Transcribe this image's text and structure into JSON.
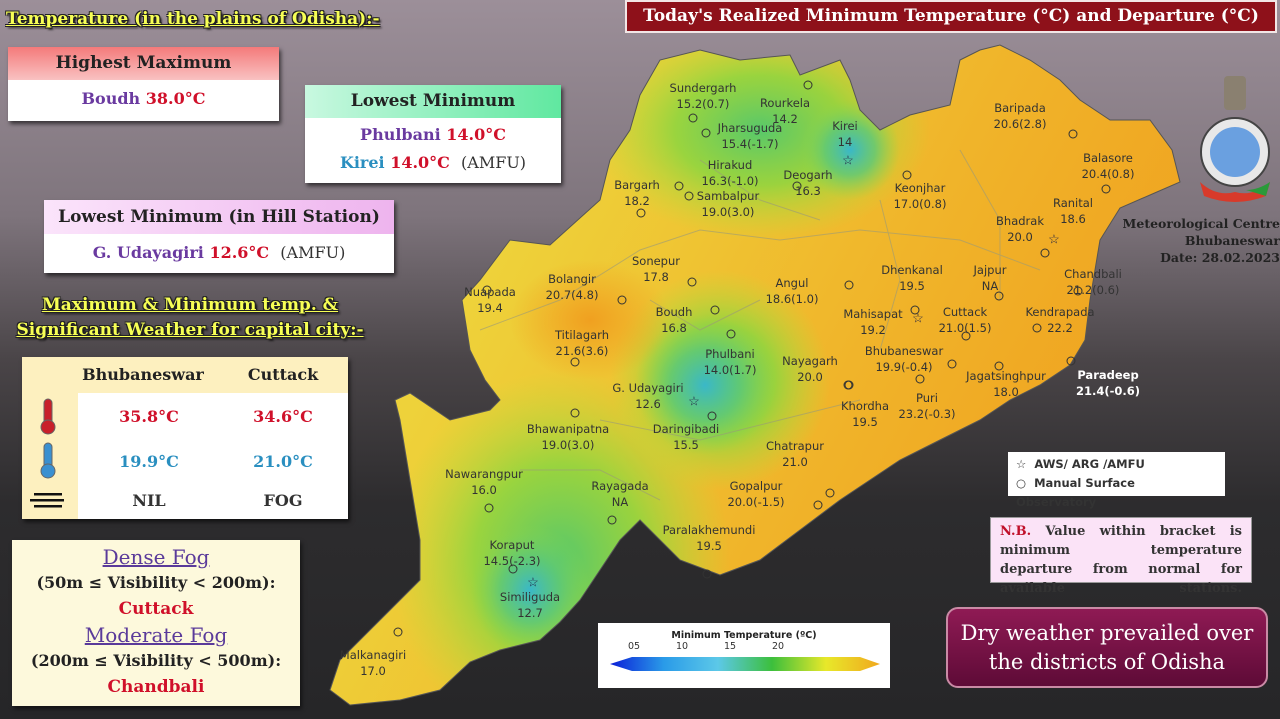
{
  "title": "Today's Realized Minimum Temperature (°C) and Departure (°C)",
  "plains_heading": "Temperature (in the plains of Odisha):-",
  "highest_maximum": {
    "header": "Highest Maximum",
    "station": "Boudh",
    "value": "38.0°C"
  },
  "lowest_minimum": {
    "header": "Lowest Minimum",
    "rows": [
      {
        "station": "Phulbani",
        "value": "14.0°C",
        "note": ""
      },
      {
        "station": "Kirei",
        "value": "14.0°C",
        "note": "(AMFU)"
      }
    ]
  },
  "hill_station": {
    "header": "Lowest Minimum (in Hill Station)",
    "station": "G. Udayagiri",
    "value": "12.6°C",
    "note": "(AMFU)"
  },
  "capital_heading": {
    "line1": "Maximum & Minimum temp. &",
    "line2": "Significant Weather for capital city:-"
  },
  "capital_table": {
    "columns": [
      "Bhubaneswar",
      "Cuttack"
    ],
    "max": [
      "35.8°C",
      "34.6°C"
    ],
    "min": [
      "19.9°C",
      "21.0°C"
    ],
    "weather": [
      "NIL",
      "FOG"
    ],
    "icons": [
      "thermometer-hot-icon",
      "thermometer-cold-icon",
      "fog-icon"
    ]
  },
  "fog": {
    "dense_title": "Dense Fog",
    "dense_range": "(50m ≤ Visibility < 200m):",
    "dense_places": "Cuttack",
    "moderate_title": "Moderate Fog",
    "moderate_range": "(200m ≤ Visibility < 500m):",
    "moderate_places": "Chandbali"
  },
  "issuer": {
    "line1": "Meteorological Centre",
    "line2": "Bhubaneswar",
    "date": "Date: 28.02.2023",
    "logo": "imd-emblem"
  },
  "legend": {
    "star": "AWS/ ARG /AMFU",
    "circle": "Manual Surface Observatory"
  },
  "nb": {
    "label": "N.B.",
    "text": "Value within bracket is minimum temperature departure from normal for available stations."
  },
  "summary": "Dry weather prevailed over the districts of Odisha",
  "colorbar": {
    "title": "Minimum Temperature (ºC)",
    "ticks": [
      "05",
      "10",
      "15",
      "20"
    ],
    "colors": [
      "#0a1fd8",
      "#2a9be8",
      "#5cc8e8",
      "#3cbf3c",
      "#e8e82a",
      "#f0a81e"
    ]
  },
  "colors": {
    "title_bg": "#8e111a",
    "summary_bg": "#7a1248",
    "map_warm": "#f0a41e",
    "map_mid": "#e8e23a",
    "map_cool": "#6fcf4a"
  },
  "stations": [
    {
      "name": "Sundergarh",
      "value": "15.2(0.7)"
    },
    {
      "name": "Rourkela",
      "value": "14.2"
    },
    {
      "name": "Jharsuguda",
      "value": "15.4(-1.7)"
    },
    {
      "name": "Kirei",
      "value": "14"
    },
    {
      "name": "Bargarh",
      "value": "18.2"
    },
    {
      "name": "Hirakud",
      "value": "16.3(-1.0)"
    },
    {
      "name": "Deogarh",
      "value": "16.3"
    },
    {
      "name": "Sambalpur",
      "value": "19.0(3.0)"
    },
    {
      "name": "Keonjhar",
      "value": "17.0(0.8)"
    },
    {
      "name": "Baripada",
      "value": "20.6(2.8)"
    },
    {
      "name": "Balasore",
      "value": "20.4(0.8)"
    },
    {
      "name": "Ranital",
      "value": "18.6"
    },
    {
      "name": "Bhadrak",
      "value": "20.0"
    },
    {
      "name": "Sonepur",
      "value": "17.8"
    },
    {
      "name": "Bolangir",
      "value": "20.7(4.8)"
    },
    {
      "name": "Angul",
      "value": "18.6(1.0)"
    },
    {
      "name": "Dhenkanal",
      "value": "19.5"
    },
    {
      "name": "Jajpur",
      "value": "NA"
    },
    {
      "name": "Chandbali",
      "value": "21.2(0.6)"
    },
    {
      "name": "Nuapada",
      "value": "19.4"
    },
    {
      "name": "Titilagarh",
      "value": "21.6(3.6)"
    },
    {
      "name": "Boudh",
      "value": "16.8"
    },
    {
      "name": "Phulbani",
      "value": "14.0(1.7)"
    },
    {
      "name": "Mahisapat",
      "value": "19.2"
    },
    {
      "name": "Cuttack",
      "value": "21.0(1.5)"
    },
    {
      "name": "Kendrapada",
      "value": "22.2"
    },
    {
      "name": "Paradeep",
      "value": "21.4(-0.6)"
    },
    {
      "name": "Nayagarh",
      "value": "20.0"
    },
    {
      "name": "Bhubaneswar",
      "value": "19.9(-0.4)"
    },
    {
      "name": "Jagatsinghpur",
      "value": "18.0"
    },
    {
      "name": "Khordha",
      "value": "19.5"
    },
    {
      "name": "Puri",
      "value": "23.2(-0.3)"
    },
    {
      "name": "G. Udayagiri",
      "value": "12.6"
    },
    {
      "name": "Daringibadi",
      "value": "15.5"
    },
    {
      "name": "Bhawanipatna",
      "value": "19.0(3.0)"
    },
    {
      "name": "Chatrapur",
      "value": "21.0"
    },
    {
      "name": "Gopalpur",
      "value": "20.0(-1.5)"
    },
    {
      "name": "Nawarangpur",
      "value": "16.0"
    },
    {
      "name": "Rayagada",
      "value": "NA"
    },
    {
      "name": "Paralakhemundi",
      "value": "19.5"
    },
    {
      "name": "Koraput",
      "value": "14.5(-2.3)"
    },
    {
      "name": "Similiguda",
      "value": "12.7"
    },
    {
      "name": "Malkanagiri",
      "value": "17.0"
    }
  ]
}
